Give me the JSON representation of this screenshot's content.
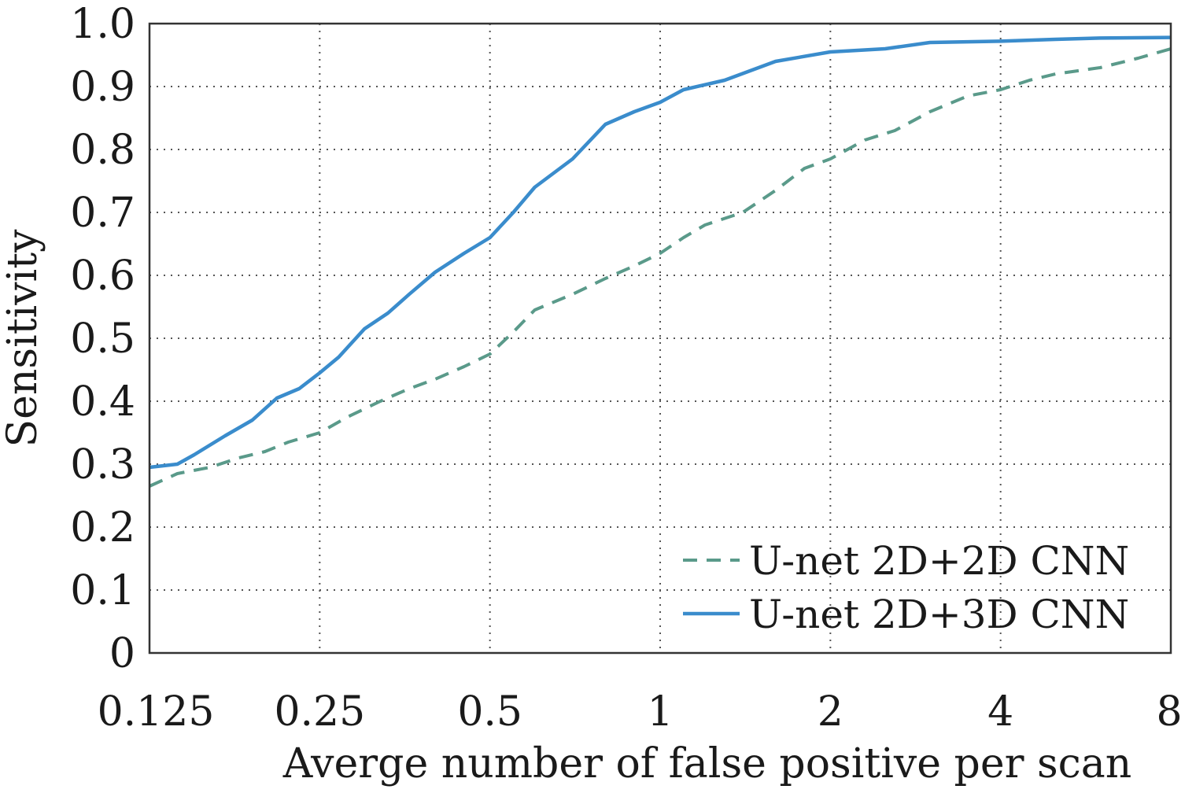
{
  "chart_data": {
    "type": "line",
    "xlabel": "Averge number of false positive per scan",
    "ylabel": "Sensitivity",
    "xscale": "log2",
    "xlim": [
      0.125,
      8
    ],
    "ylim": [
      0,
      1.0
    ],
    "x_ticks": [
      0.125,
      0.25,
      0.5,
      1,
      2,
      4,
      8
    ],
    "x_tick_labels": [
      "0.125",
      "0.25",
      "0.5",
      "1",
      "2",
      "4",
      "8"
    ],
    "y_ticks": [
      0,
      0.1,
      0.2,
      0.3,
      0.4,
      0.5,
      0.6,
      0.7,
      0.8,
      0.9,
      1.0
    ],
    "y_tick_labels": [
      "0",
      "0.1",
      "0.2",
      "0.3",
      "0.4",
      "0.5",
      "0.6",
      "0.7",
      "0.8",
      "0.9",
      "1.0"
    ],
    "grid": true,
    "legend_position": "bottom-right",
    "series": [
      {
        "name": "U-net 2D+2D CNN",
        "style": "dashed",
        "color": "#5a9a8a",
        "x": [
          0.125,
          0.14,
          0.16,
          0.18,
          0.2,
          0.22,
          0.25,
          0.28,
          0.32,
          0.36,
          0.4,
          0.45,
          0.5,
          0.55,
          0.6,
          0.7,
          0.8,
          0.9,
          1.0,
          1.1,
          1.2,
          1.4,
          1.6,
          1.8,
          2.0,
          2.3,
          2.6,
          3.0,
          3.5,
          4.0,
          4.5,
          5.0,
          6.0,
          7.0,
          8.0
        ],
        "y": [
          0.265,
          0.285,
          0.295,
          0.31,
          0.32,
          0.335,
          0.35,
          0.375,
          0.4,
          0.42,
          0.435,
          0.455,
          0.475,
          0.51,
          0.545,
          0.57,
          0.595,
          0.615,
          0.635,
          0.66,
          0.68,
          0.7,
          0.735,
          0.77,
          0.785,
          0.815,
          0.83,
          0.86,
          0.885,
          0.895,
          0.91,
          0.92,
          0.93,
          0.945,
          0.96
        ]
      },
      {
        "name": "U-net 2D+3D CNN",
        "style": "solid",
        "color": "#3a8ccc",
        "x": [
          0.125,
          0.14,
          0.15,
          0.17,
          0.19,
          0.21,
          0.23,
          0.25,
          0.27,
          0.3,
          0.33,
          0.36,
          0.4,
          0.45,
          0.5,
          0.55,
          0.6,
          0.7,
          0.8,
          0.9,
          1.0,
          1.1,
          1.3,
          1.6,
          2.0,
          2.5,
          3.0,
          4.0,
          5.0,
          6.0,
          8.0
        ],
        "y": [
          0.295,
          0.3,
          0.315,
          0.345,
          0.37,
          0.405,
          0.42,
          0.445,
          0.47,
          0.515,
          0.54,
          0.57,
          0.605,
          0.635,
          0.66,
          0.7,
          0.74,
          0.785,
          0.84,
          0.86,
          0.875,
          0.895,
          0.91,
          0.94,
          0.955,
          0.96,
          0.97,
          0.972,
          0.975,
          0.977,
          0.978
        ]
      }
    ]
  }
}
